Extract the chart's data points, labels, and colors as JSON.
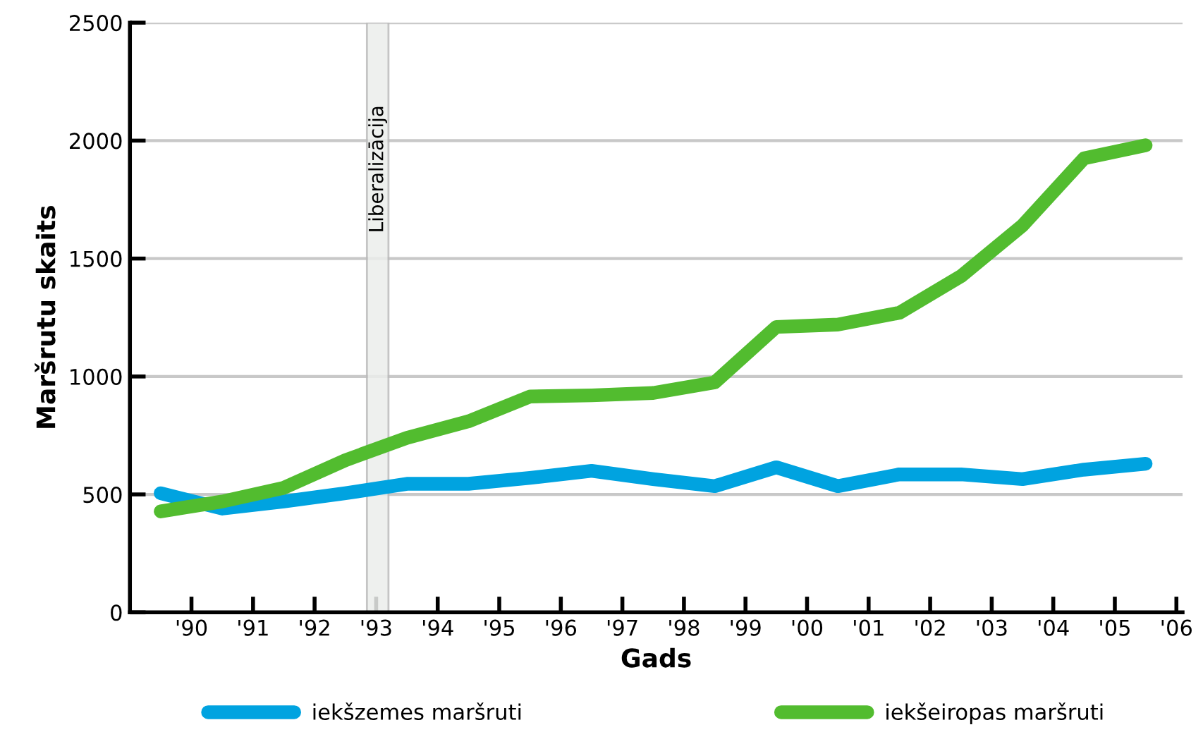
{
  "chart_data": {
    "type": "line",
    "xlabel": "Gads",
    "ylabel": "Maršrutu skaits",
    "x": [
      1989.5,
      1990.5,
      1991.5,
      1992.5,
      1993.5,
      1994.5,
      1995.5,
      1996.5,
      1997.5,
      1998.5,
      1999.5,
      2000.5,
      2001.5,
      2002.5,
      2003.5,
      2004.5,
      2005.5
    ],
    "series": [
      {
        "name": "iekšzemes maršruti",
        "color": "#00a3e0",
        "values": [
          505,
          440,
          470,
          505,
          545,
          545,
          570,
          600,
          565,
          535,
          615,
          535,
          585,
          585,
          565,
          605,
          630
        ]
      },
      {
        "name": "iekšeiropas maršruti",
        "color": "#52bc2f",
        "values": [
          428,
          470,
          528,
          645,
          740,
          810,
          915,
          920,
          930,
          975,
          1210,
          1220,
          1270,
          1425,
          1640,
          1925,
          1980
        ]
      }
    ],
    "xlim": [
      1989,
      2006.1
    ],
    "xticks": [
      {
        "value": 1990,
        "label": "'90"
      },
      {
        "value": 1991,
        "label": "'91"
      },
      {
        "value": 1992,
        "label": "'92"
      },
      {
        "value": 1993,
        "label": "'93"
      },
      {
        "value": 1994,
        "label": "'94"
      },
      {
        "value": 1995,
        "label": "'95"
      },
      {
        "value": 1996,
        "label": "'96"
      },
      {
        "value": 1997,
        "label": "'97"
      },
      {
        "value": 1998,
        "label": "'98"
      },
      {
        "value": 1999,
        "label": "'99"
      },
      {
        "value": 2000,
        "label": "'00"
      },
      {
        "value": 2001,
        "label": "'01"
      },
      {
        "value": 2002,
        "label": "'02"
      },
      {
        "value": 2003,
        "label": "'03"
      },
      {
        "value": 2004,
        "label": "'04"
      },
      {
        "value": 2005,
        "label": "'05"
      },
      {
        "value": 2006,
        "label": "'06"
      }
    ],
    "ylim": [
      0,
      2500
    ],
    "yticks": [
      0,
      500,
      1000,
      1500,
      2000,
      2500
    ],
    "bands": [
      {
        "axis": "x",
        "from": 1992.85,
        "to": 1993.2,
        "label": "Liberalizācija",
        "color": "#eceeec"
      }
    ],
    "grid": "y",
    "legend": "bottom",
    "marker": "none",
    "line_style": "solid"
  }
}
